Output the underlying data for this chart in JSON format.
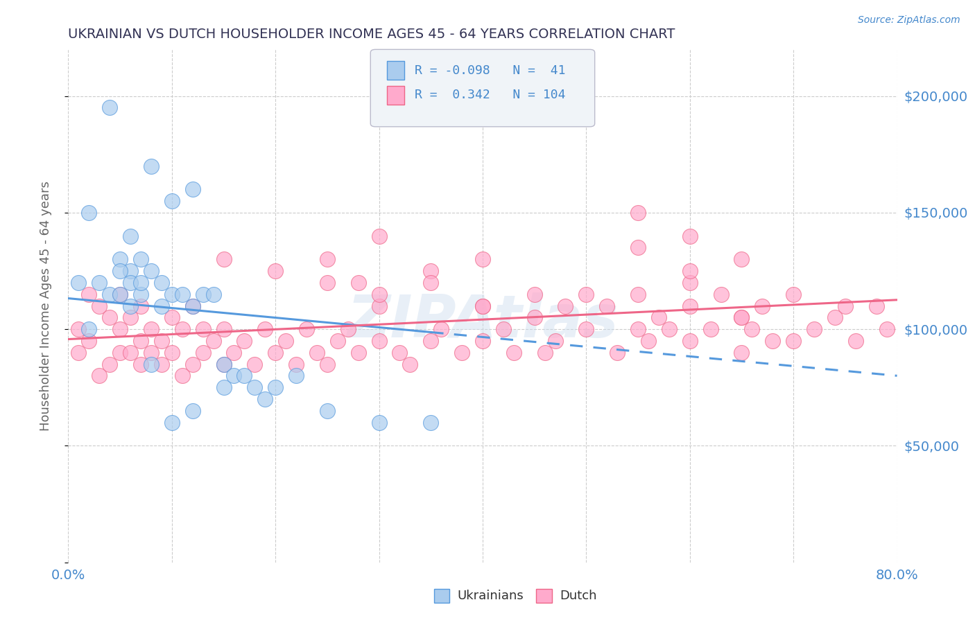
{
  "title": "UKRAINIAN VS DUTCH HOUSEHOLDER INCOME AGES 45 - 64 YEARS CORRELATION CHART",
  "source": "Source: ZipAtlas.com",
  "ylabel": "Householder Income Ages 45 - 64 years",
  "xlim": [
    0.0,
    0.8
  ],
  "ylim": [
    0,
    220000
  ],
  "yticks": [
    0,
    50000,
    100000,
    150000,
    200000
  ],
  "xticks": [
    0.0,
    0.1,
    0.2,
    0.3,
    0.4,
    0.5,
    0.6,
    0.7,
    0.8
  ],
  "background_color": "#ffffff",
  "grid_color": "#cccccc",
  "ukrainians_color": "#aaccee",
  "dutch_color": "#ffaacc",
  "ukrainians_line_color": "#5599dd",
  "dutch_line_color": "#ee6688",
  "legend_R_ukrainian": "-0.098",
  "legend_N_ukrainian": "41",
  "legend_R_dutch": "0.342",
  "legend_N_dutch": "104",
  "legend_label_ukrainian": "Ukrainians",
  "legend_label_dutch": "Dutch",
  "watermark": "ZIPAtlas",
  "title_color": "#333355",
  "axis_label_color": "#666666",
  "tick_label_color": "#4488cc",
  "ukrainians_x": [
    0.01,
    0.02,
    0.04,
    0.08,
    0.1,
    0.12,
    0.03,
    0.05,
    0.07,
    0.06,
    0.04,
    0.07,
    0.06,
    0.05,
    0.05,
    0.06,
    0.06,
    0.07,
    0.08,
    0.09,
    0.09,
    0.1,
    0.11,
    0.12,
    0.13,
    0.14,
    0.15,
    0.15,
    0.16,
    0.17,
    0.18,
    0.19,
    0.2,
    0.22,
    0.25,
    0.3,
    0.35,
    0.02,
    0.08,
    0.1,
    0.12
  ],
  "ukrainians_y": [
    120000,
    150000,
    195000,
    170000,
    155000,
    160000,
    120000,
    130000,
    115000,
    125000,
    115000,
    130000,
    140000,
    115000,
    125000,
    110000,
    120000,
    120000,
    125000,
    120000,
    110000,
    115000,
    115000,
    110000,
    115000,
    115000,
    75000,
    85000,
    80000,
    80000,
    75000,
    70000,
    75000,
    80000,
    65000,
    60000,
    60000,
    100000,
    85000,
    60000,
    65000
  ],
  "dutch_x": [
    0.01,
    0.01,
    0.02,
    0.02,
    0.03,
    0.03,
    0.04,
    0.04,
    0.05,
    0.05,
    0.05,
    0.06,
    0.06,
    0.07,
    0.07,
    0.07,
    0.08,
    0.08,
    0.09,
    0.09,
    0.1,
    0.1,
    0.11,
    0.11,
    0.12,
    0.12,
    0.13,
    0.13,
    0.14,
    0.15,
    0.15,
    0.16,
    0.17,
    0.18,
    0.19,
    0.2,
    0.21,
    0.22,
    0.23,
    0.24,
    0.25,
    0.26,
    0.27,
    0.28,
    0.3,
    0.3,
    0.32,
    0.33,
    0.35,
    0.36,
    0.38,
    0.4,
    0.4,
    0.42,
    0.43,
    0.45,
    0.46,
    0.47,
    0.48,
    0.5,
    0.52,
    0.53,
    0.55,
    0.56,
    0.57,
    0.58,
    0.6,
    0.6,
    0.62,
    0.63,
    0.65,
    0.65,
    0.66,
    0.67,
    0.68,
    0.7,
    0.72,
    0.74,
    0.75,
    0.76,
    0.78,
    0.79,
    0.25,
    0.3,
    0.35,
    0.4,
    0.15,
    0.2,
    0.55,
    0.6,
    0.65,
    0.7,
    0.55,
    0.6,
    0.28,
    0.35,
    0.4,
    0.45,
    0.5,
    0.25,
    0.3,
    0.55,
    0.6,
    0.65
  ],
  "dutch_y": [
    100000,
    90000,
    95000,
    115000,
    80000,
    110000,
    85000,
    105000,
    90000,
    100000,
    115000,
    90000,
    105000,
    85000,
    95000,
    110000,
    90000,
    100000,
    85000,
    95000,
    90000,
    105000,
    80000,
    100000,
    85000,
    110000,
    90000,
    100000,
    95000,
    85000,
    100000,
    90000,
    95000,
    85000,
    100000,
    90000,
    95000,
    85000,
    100000,
    90000,
    85000,
    95000,
    100000,
    90000,
    95000,
    110000,
    90000,
    85000,
    95000,
    100000,
    90000,
    110000,
    95000,
    100000,
    90000,
    105000,
    90000,
    95000,
    110000,
    100000,
    110000,
    90000,
    100000,
    95000,
    105000,
    100000,
    110000,
    95000,
    100000,
    115000,
    105000,
    90000,
    100000,
    110000,
    95000,
    95000,
    100000,
    105000,
    110000,
    95000,
    110000,
    100000,
    130000,
    140000,
    125000,
    130000,
    130000,
    125000,
    115000,
    120000,
    105000,
    115000,
    150000,
    140000,
    120000,
    120000,
    110000,
    115000,
    115000,
    120000,
    115000,
    135000,
    125000,
    130000
  ]
}
